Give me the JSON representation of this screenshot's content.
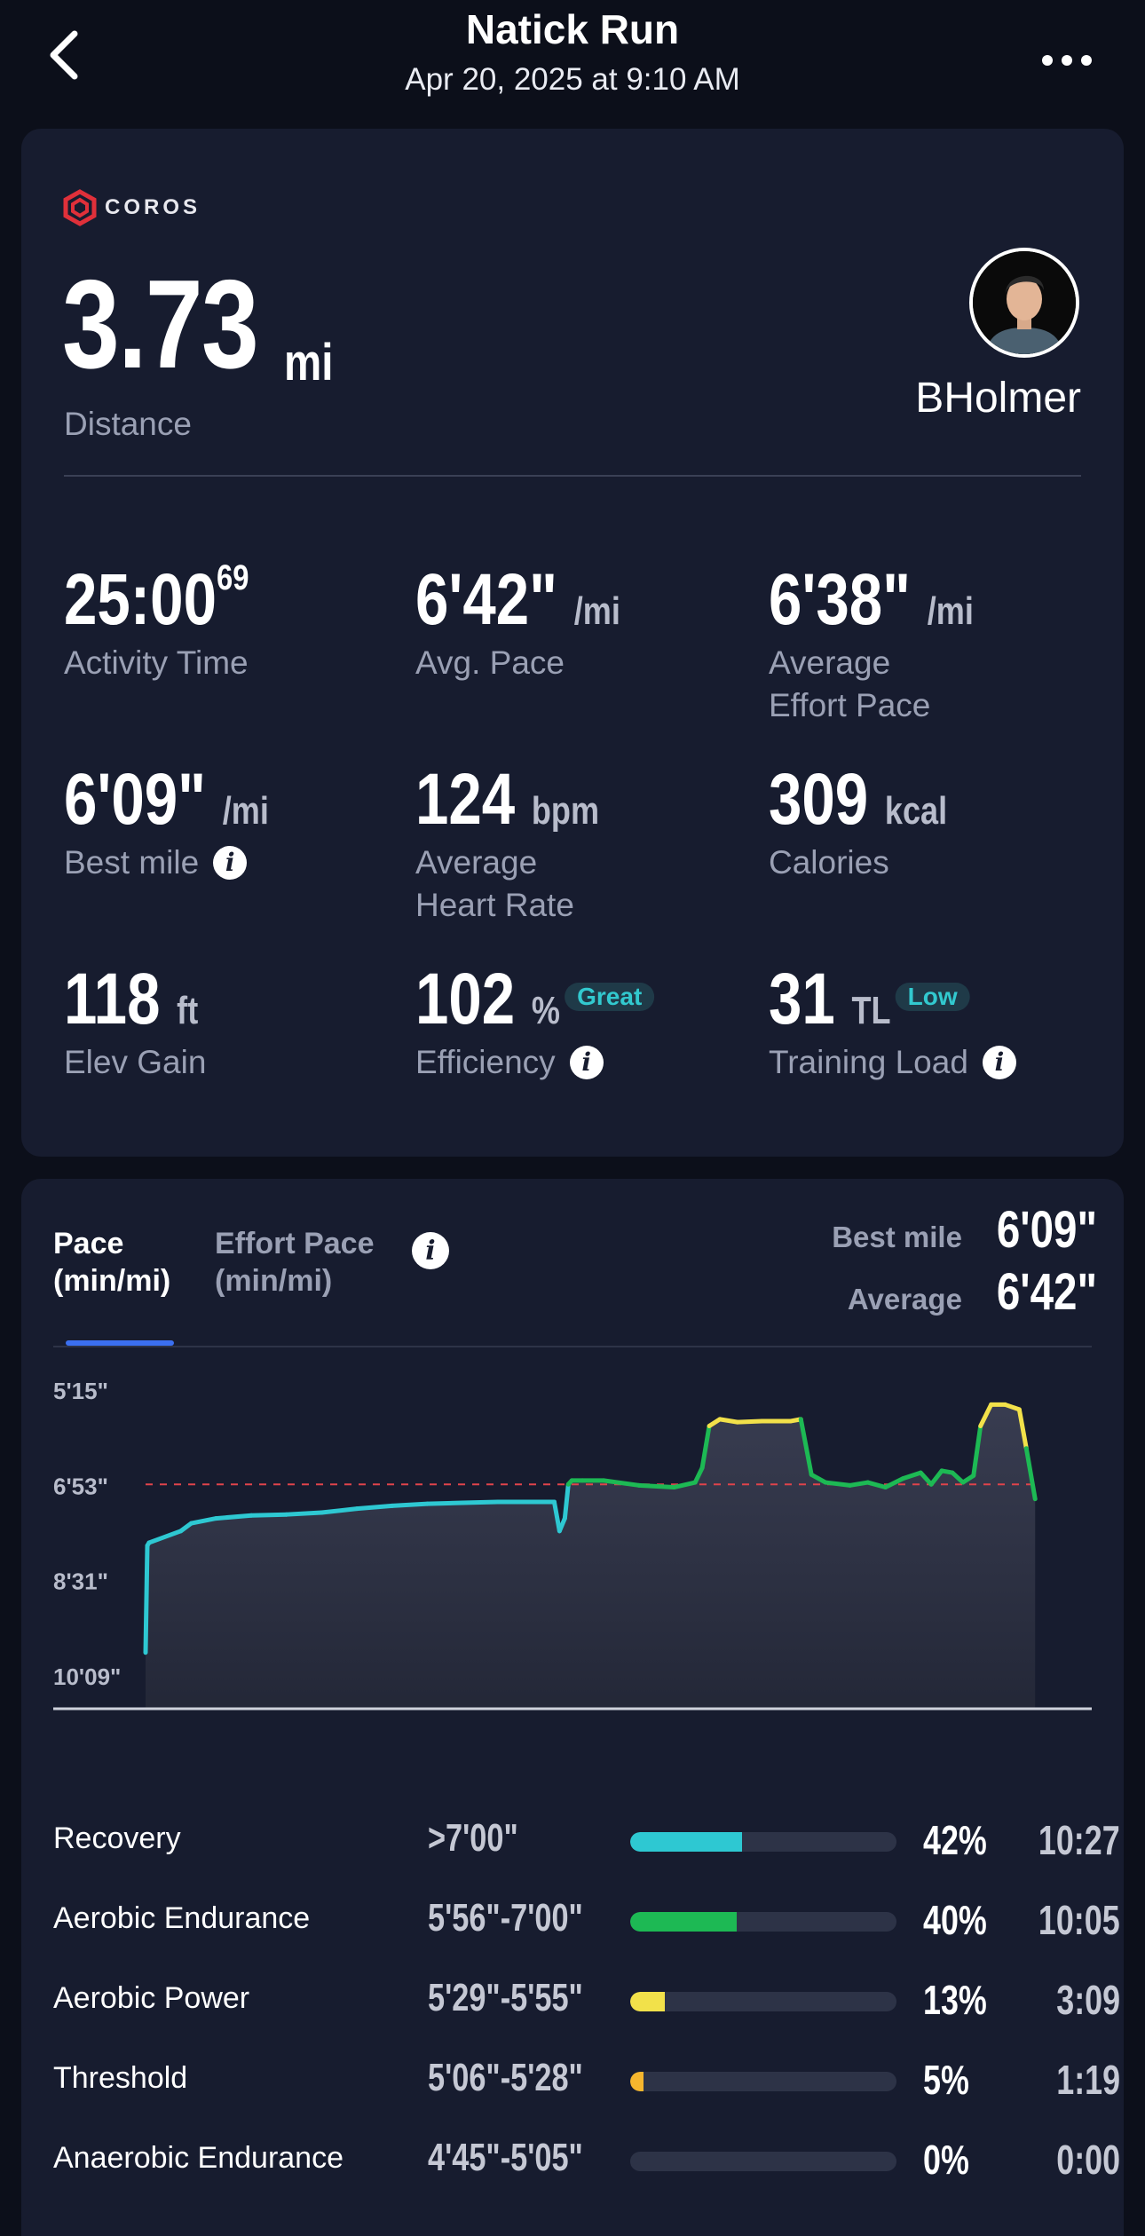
{
  "header": {
    "title": "Natick Run",
    "subtitle": "Apr 20, 2025 at 9:10 AM"
  },
  "summary_card": {
    "brand": "COROS",
    "distance": {
      "value": "3.73",
      "unit": "mi",
      "label": "Distance"
    },
    "username": "BHolmer",
    "stats": {
      "activity_time": {
        "value": "25:00",
        "sup": "69",
        "label": "Activity Time"
      },
      "avg_pace": {
        "value": "6'42\"",
        "unit": "/mi",
        "label": "Avg. Pace"
      },
      "avg_effort_pace": {
        "value": "6'38\"",
        "unit": "/mi",
        "label1": "Average",
        "label2": "Effort Pace"
      },
      "best_mile": {
        "value": "6'09\"",
        "unit": "/mi",
        "label": "Best mile"
      },
      "avg_hr": {
        "value": "124",
        "unit": "bpm",
        "label1": "Average",
        "label2": "Heart Rate"
      },
      "calories": {
        "value": "309",
        "unit": "kcal",
        "label": "Calories"
      },
      "elev_gain": {
        "value": "118",
        "unit": "ft",
        "label": "Elev Gain"
      },
      "efficiency": {
        "value": "102",
        "unit": "%",
        "badge": "Great",
        "label": "Efficiency"
      },
      "training_load": {
        "value": "31",
        "unit": "TL",
        "badge": "Low",
        "label": "Training Load"
      }
    }
  },
  "pace_card": {
    "tabs": [
      {
        "line1": "Pace",
        "line2": "(min/mi)"
      },
      {
        "line1": "Effort Pace",
        "line2": "(min/mi)"
      }
    ],
    "best_mile_label": "Best mile",
    "best_mile_value": "6'09\"",
    "average_label": "Average",
    "average_value": "6'42\""
  },
  "chart_data": {
    "type": "line",
    "title": "",
    "xlabel": "",
    "ylabel": "",
    "x_ticks": [
      "0",
      "10",
      "20",
      "26"
    ],
    "y_ticks": [
      "5'15\"",
      "6'53\"",
      "8'31\"",
      "10'09\""
    ],
    "xlim": [
      0,
      26
    ],
    "ylim_seconds": [
      315,
      609
    ],
    "reference_line_seconds": 412,
    "colors": {
      "recovery": "#2ec8d2",
      "aerobic_endurance": "#1db954",
      "aerobic_power": "#f2e14a",
      "threshold": "#f5b62e",
      "reference": "#e0434b"
    },
    "series": [
      {
        "x": [
          0,
          0.05,
          0.1,
          1.0,
          1.3,
          2.0,
          3.0,
          4.0,
          5.0,
          6.0,
          7.0,
          8.0,
          9.0,
          10.0,
          11.0,
          11.6,
          11.75,
          11.9,
          12.0,
          12.1,
          12.4,
          13.0,
          14.0,
          15.0,
          15.6,
          15.8,
          16.0,
          16.3,
          16.8,
          17.5,
          18.3,
          18.6,
          18.9,
          19.3,
          20.0,
          20.5,
          21.0,
          21.5,
          22.0,
          22.3,
          22.6,
          22.9,
          23.2,
          23.5,
          23.7,
          24.0,
          24.4,
          24.8,
          25.0,
          25.25
        ],
        "y_seconds": [
          585,
          475,
          472,
          460,
          452,
          447,
          444,
          443,
          441,
          437,
          434,
          432,
          431,
          430,
          430,
          430,
          460,
          447,
          412,
          408,
          408,
          408,
          413,
          415,
          410,
          395,
          352,
          345,
          348,
          347,
          347,
          345,
          402,
          410,
          413,
          410,
          415,
          406,
          400,
          412,
          398,
          400,
          410,
          403,
          352,
          330,
          330,
          335,
          375,
          427
        ]
      }
    ]
  },
  "zones": [
    {
      "name": "Recovery",
      "range": ">7'00\"",
      "percent": "42%",
      "time": "10:27",
      "fill": 0.42,
      "color": "#2ec8d2"
    },
    {
      "name": "Aerobic Endurance",
      "range": "5'56\"-7'00\"",
      "percent": "40%",
      "time": "10:05",
      "fill": 0.4,
      "color": "#1db954"
    },
    {
      "name": "Aerobic Power",
      "range": "5'29\"-5'55\"",
      "percent": "13%",
      "time": "3:09",
      "fill": 0.13,
      "color": "#f2e14a"
    },
    {
      "name": "Threshold",
      "range": "5'06\"-5'28\"",
      "percent": "5%",
      "time": "1:19",
      "fill": 0.05,
      "color": "#f5b62e"
    },
    {
      "name": "Anaerobic Endurance",
      "range": "4'45\"-5'05\"",
      "percent": "0%",
      "time": "0:00",
      "fill": 0.0,
      "color": "#e0434b"
    }
  ]
}
